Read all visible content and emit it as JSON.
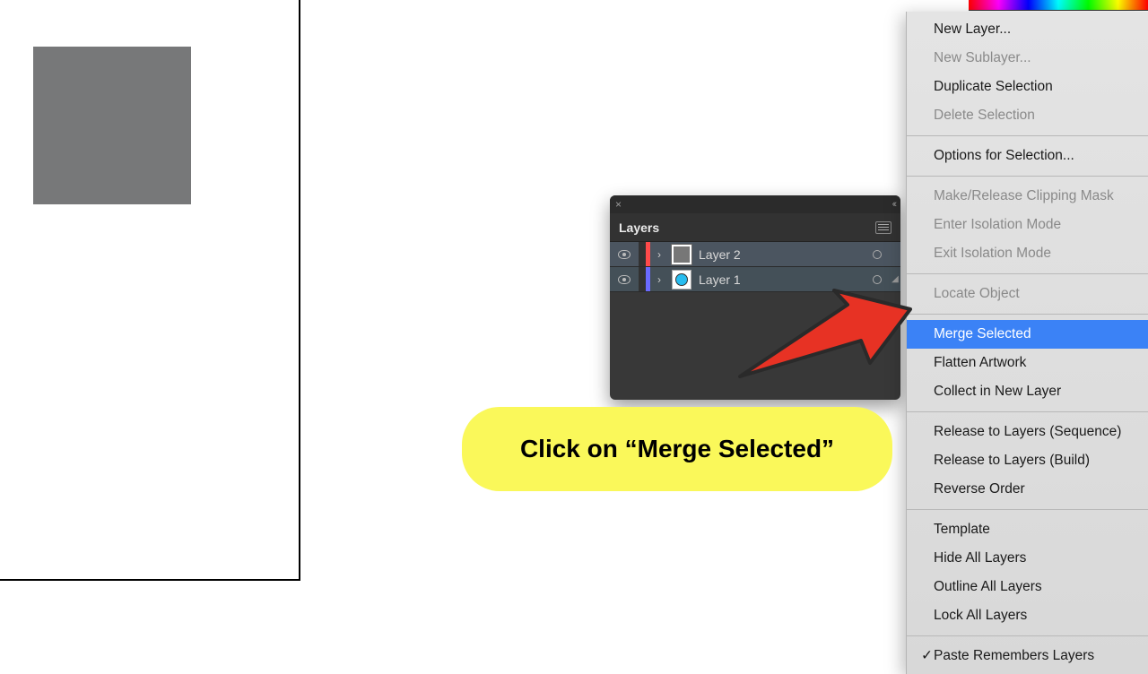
{
  "canvas": {
    "rect_color": "#777879"
  },
  "layers_panel": {
    "title": "Layers",
    "rows": [
      {
        "name": "Layer 2",
        "colorbar": "#ff4a4a",
        "thumb_type": "gray",
        "selected": true
      },
      {
        "name": "Layer 1",
        "colorbar": "#6a6aff",
        "thumb_type": "circle",
        "selected": true,
        "has_sel_indicator": true
      }
    ]
  },
  "context_menu": {
    "groups": [
      [
        {
          "label": "New Layer...",
          "enabled": true
        },
        {
          "label": "New Sublayer...",
          "enabled": false
        },
        {
          "label": "Duplicate Selection",
          "enabled": true
        },
        {
          "label": "Delete Selection",
          "enabled": false
        }
      ],
      [
        {
          "label": "Options for Selection...",
          "enabled": true
        }
      ],
      [
        {
          "label": "Make/Release Clipping Mask",
          "enabled": false
        },
        {
          "label": "Enter Isolation Mode",
          "enabled": false
        },
        {
          "label": "Exit Isolation Mode",
          "enabled": false
        }
      ],
      [
        {
          "label": "Locate Object",
          "enabled": false
        }
      ],
      [
        {
          "label": "Merge Selected",
          "enabled": true,
          "highlighted": true
        },
        {
          "label": "Flatten Artwork",
          "enabled": true
        },
        {
          "label": "Collect in New Layer",
          "enabled": true
        }
      ],
      [
        {
          "label": "Release to Layers (Sequence)",
          "enabled": true
        },
        {
          "label": "Release to Layers (Build)",
          "enabled": true
        },
        {
          "label": "Reverse Order",
          "enabled": true
        }
      ],
      [
        {
          "label": "Template",
          "enabled": true
        },
        {
          "label": "Hide All Layers",
          "enabled": true
        },
        {
          "label": "Outline All Layers",
          "enabled": true
        },
        {
          "label": "Lock All Layers",
          "enabled": true
        }
      ],
      [
        {
          "label": "Paste Remembers Layers",
          "enabled": true,
          "checked": true
        }
      ]
    ]
  },
  "callout": {
    "text": "Click on “Merge Selected”",
    "bg": "#faf85a"
  },
  "arrow": {
    "fill": "#e73224",
    "stroke": "#2a2a2a"
  }
}
